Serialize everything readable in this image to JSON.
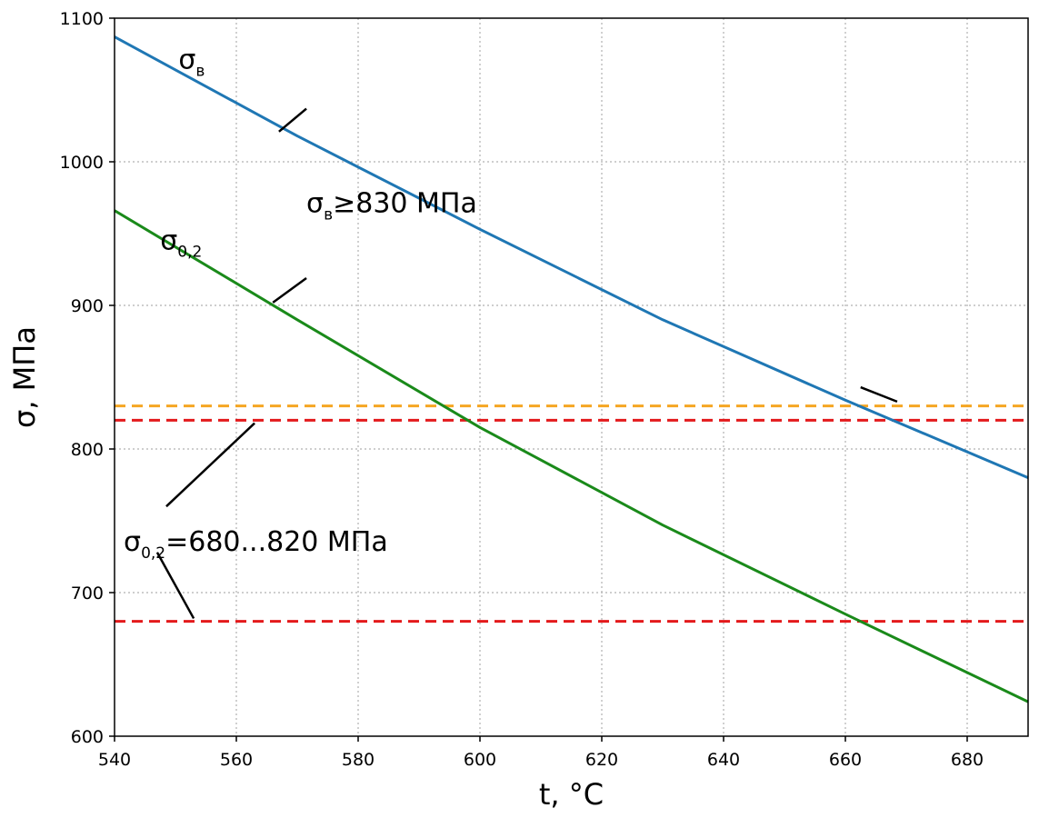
{
  "chart_data": {
    "type": "line",
    "xlabel": "t, °C",
    "ylabel": "σ, МПа",
    "xlim": [
      540,
      690
    ],
    "ylim": [
      600,
      1100
    ],
    "xticks": [
      540,
      560,
      580,
      600,
      620,
      640,
      660,
      680
    ],
    "yticks": [
      600,
      700,
      800,
      900,
      1000,
      1100
    ],
    "grid": true,
    "series": [
      {
        "color": "#1f77b4",
        "x": [
          540,
          570,
          600,
          630,
          660,
          690
        ],
        "y": [
          1087,
          1018,
          953,
          890,
          834,
          780
        ]
      },
      {
        "color": "#1a8a1a",
        "x": [
          540,
          570,
          600,
          630,
          660,
          690
        ],
        "y": [
          966,
          890,
          815,
          747,
          685,
          624
        ]
      }
    ],
    "hlines": [
      {
        "y": 830,
        "color": "#f5a623"
      },
      {
        "y": 820,
        "color": "#e31a1c"
      },
      {
        "y": 680,
        "color": "#e31a1c"
      }
    ],
    "annotations": [
      {
        "main": "σ",
        "sub": "в",
        "suffix": "",
        "text_at": [
          550.5,
          1065
        ],
        "line": [
          [
            567,
            1021
          ],
          [
            571.5,
            1037
          ]
        ]
      },
      {
        "main": "σ",
        "sub": "0,2",
        "suffix": "",
        "text_at": [
          547.5,
          939
        ],
        "line": [
          [
            566,
            902
          ],
          [
            571.5,
            919
          ]
        ]
      },
      {
        "main": "σ",
        "sub": "в",
        "suffix": "≥830 МПа",
        "text_at": [
          571.5,
          965
        ],
        "line": [
          [
            668.5,
            833
          ],
          [
            662.5,
            843
          ]
        ]
      },
      {
        "main": "σ",
        "sub": "0,2",
        "suffix": "=680...820 МПа",
        "text_at": [
          541.5,
          729
        ],
        "line": [
          [
            548.5,
            760
          ],
          [
            563,
            818
          ]
        ]
      }
    ],
    "extra_leaders": [
      {
        "line": [
          [
            547,
            728
          ],
          [
            553,
            682
          ]
        ]
      }
    ]
  }
}
